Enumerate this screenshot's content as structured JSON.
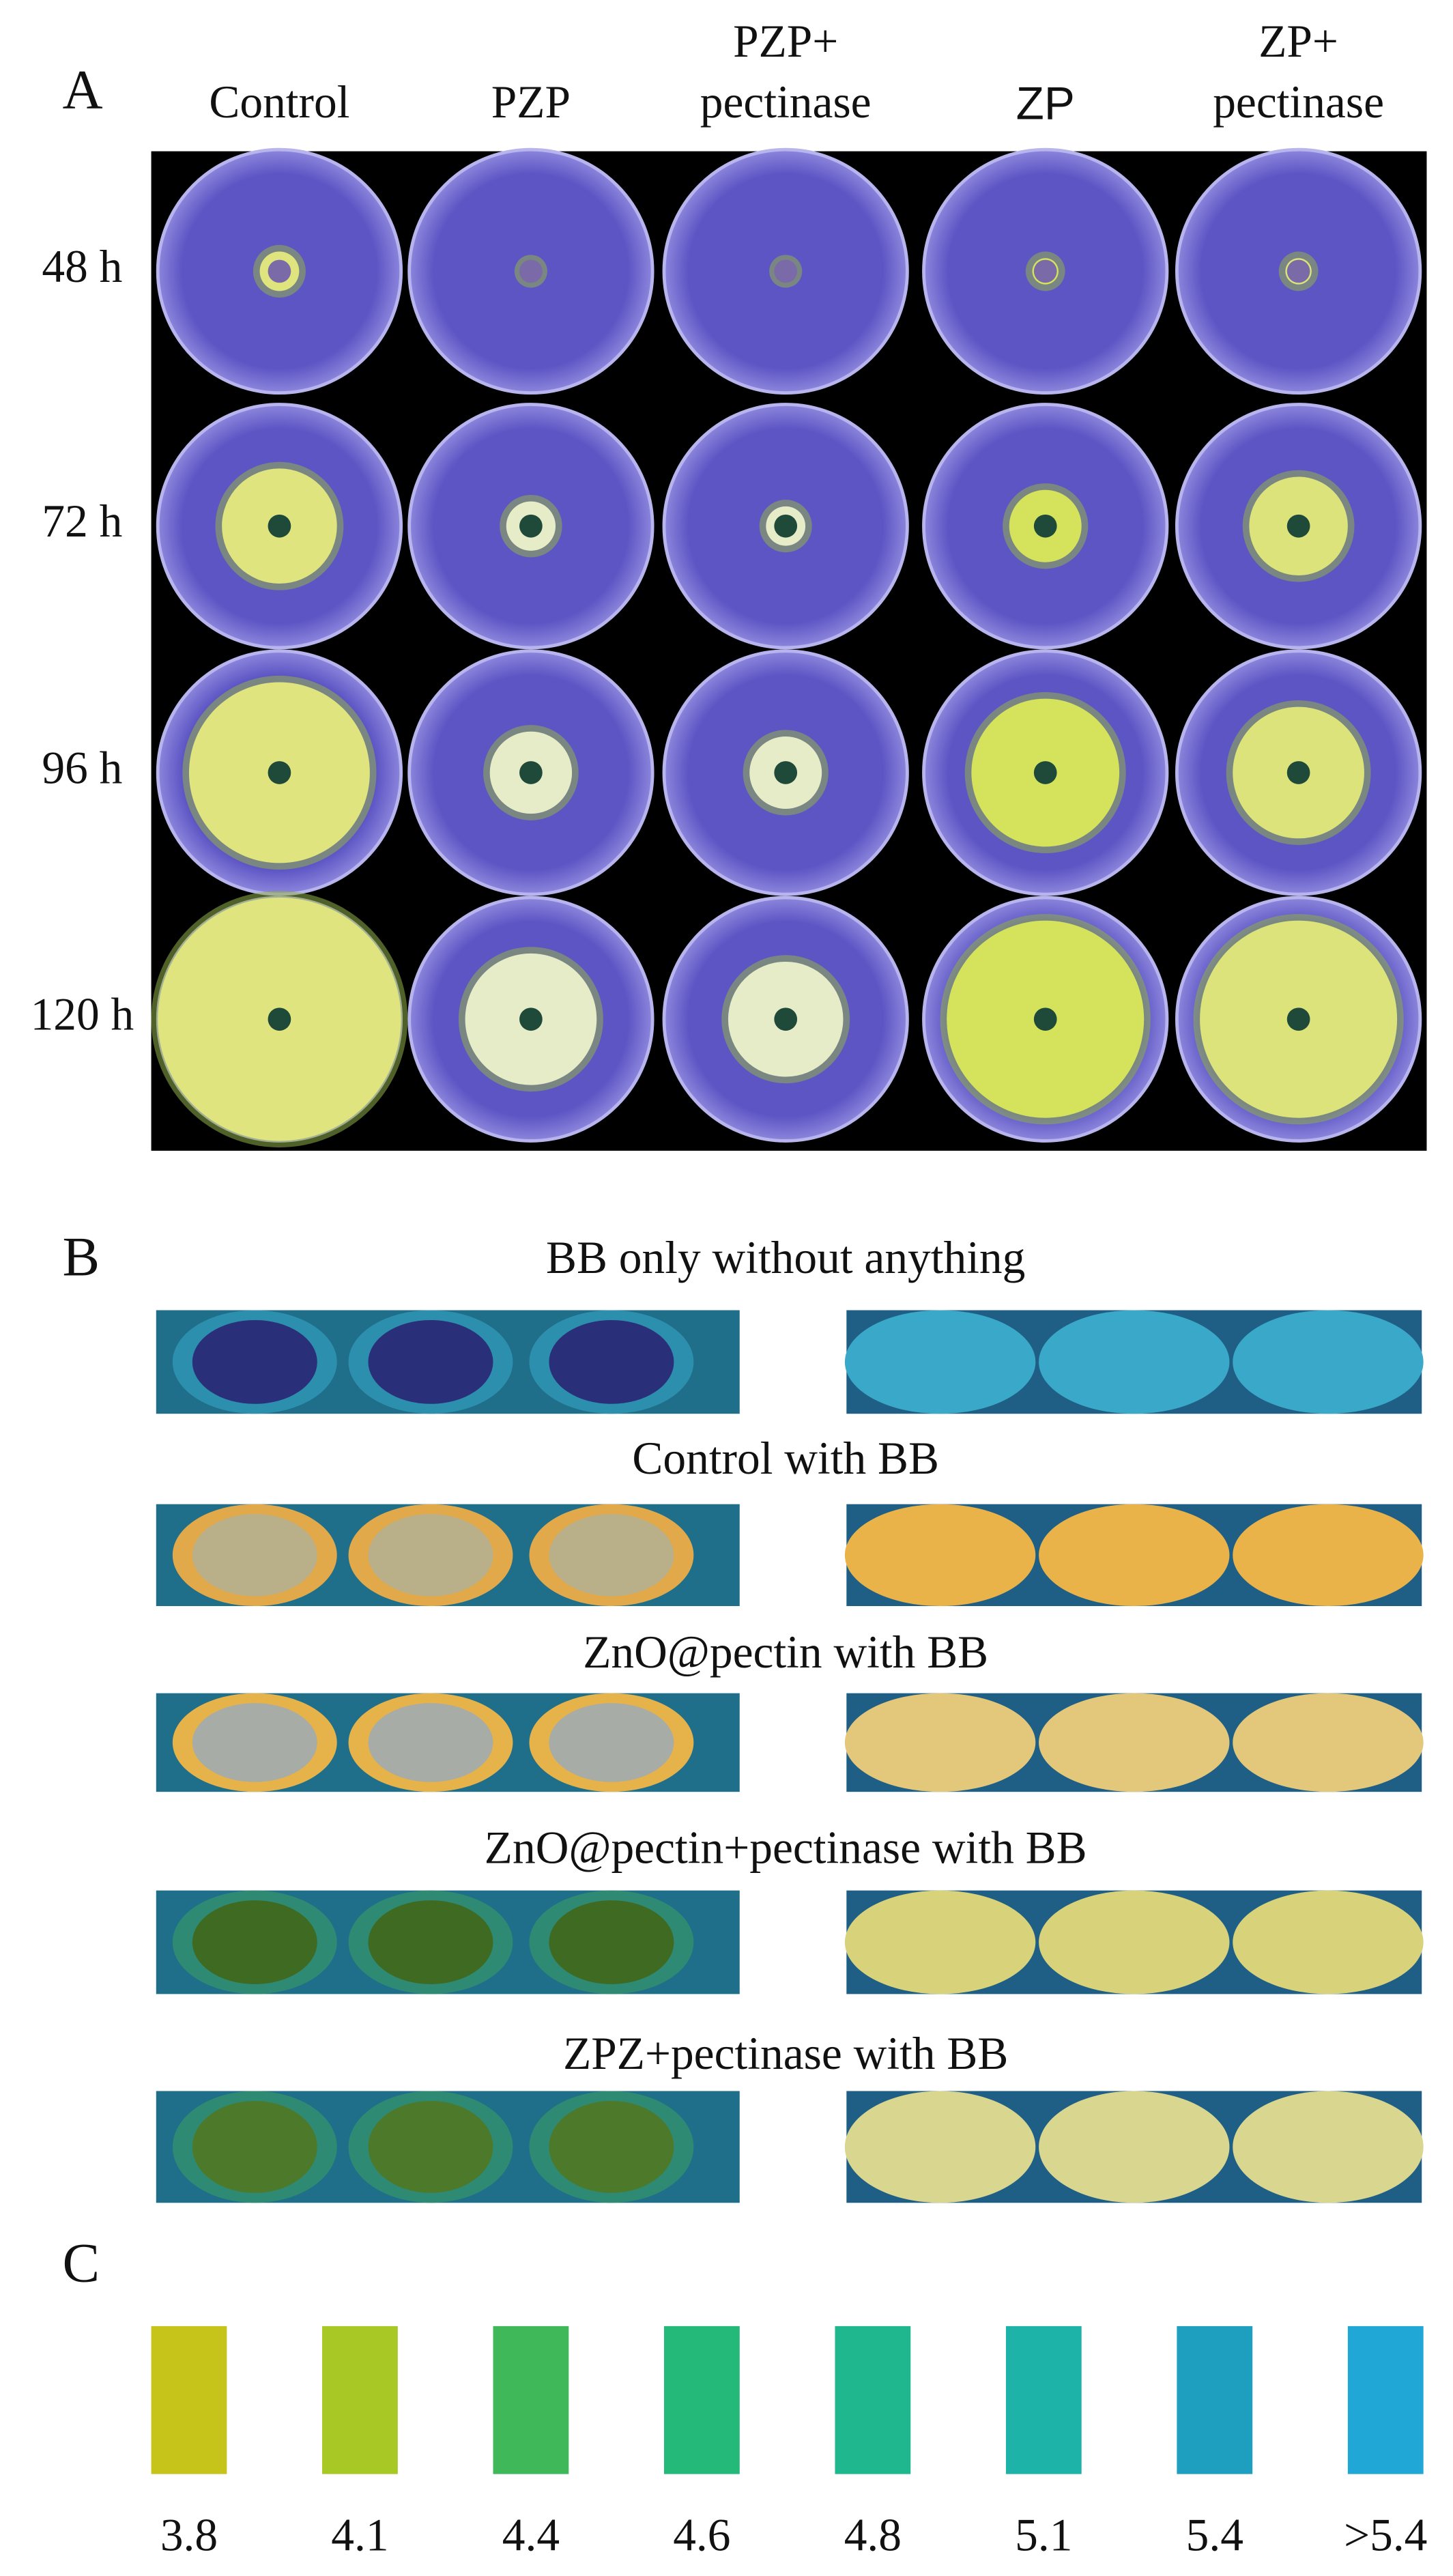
{
  "panels": [
    {
      "label": "A",
      "columns": [
        {
          "lines": [
            "Control"
          ]
        },
        {
          "lines": [
            "PZP"
          ]
        },
        {
          "lines": [
            "PZP+",
            "pectinase"
          ]
        },
        {
          "lines": [
            "ZP"
          ]
        },
        {
          "lines": [
            "ZP+",
            "pectinase"
          ]
        }
      ],
      "rows": [
        "48 h",
        "72 h",
        "96 h",
        "120 h"
      ]
    },
    {
      "label": "B",
      "strips": [
        "BB only without anything",
        "Control with BB",
        "ZnO@pectin with BB",
        "ZnO@pectin+pectinase with BB",
        "ZPZ+pectinase with BB"
      ]
    },
    {
      "label": "C",
      "swatches": [
        {
          "label": "3.8",
          "color": "#c6c41a"
        },
        {
          "label": "4.1",
          "color": "#a8c826"
        },
        {
          "label": "4.4",
          "color": "#3fb85a"
        },
        {
          "label": "4.6",
          "color": "#24b879"
        },
        {
          "label": "4.8",
          "color": "#1fb88e"
        },
        {
          "label": "5.1",
          "color": "#1eb3a8"
        },
        {
          "label": "5.4",
          "color": "#1e9fc0"
        },
        {
          "label": ">5.4",
          "color": "#21a7d6"
        }
      ]
    }
  ]
}
